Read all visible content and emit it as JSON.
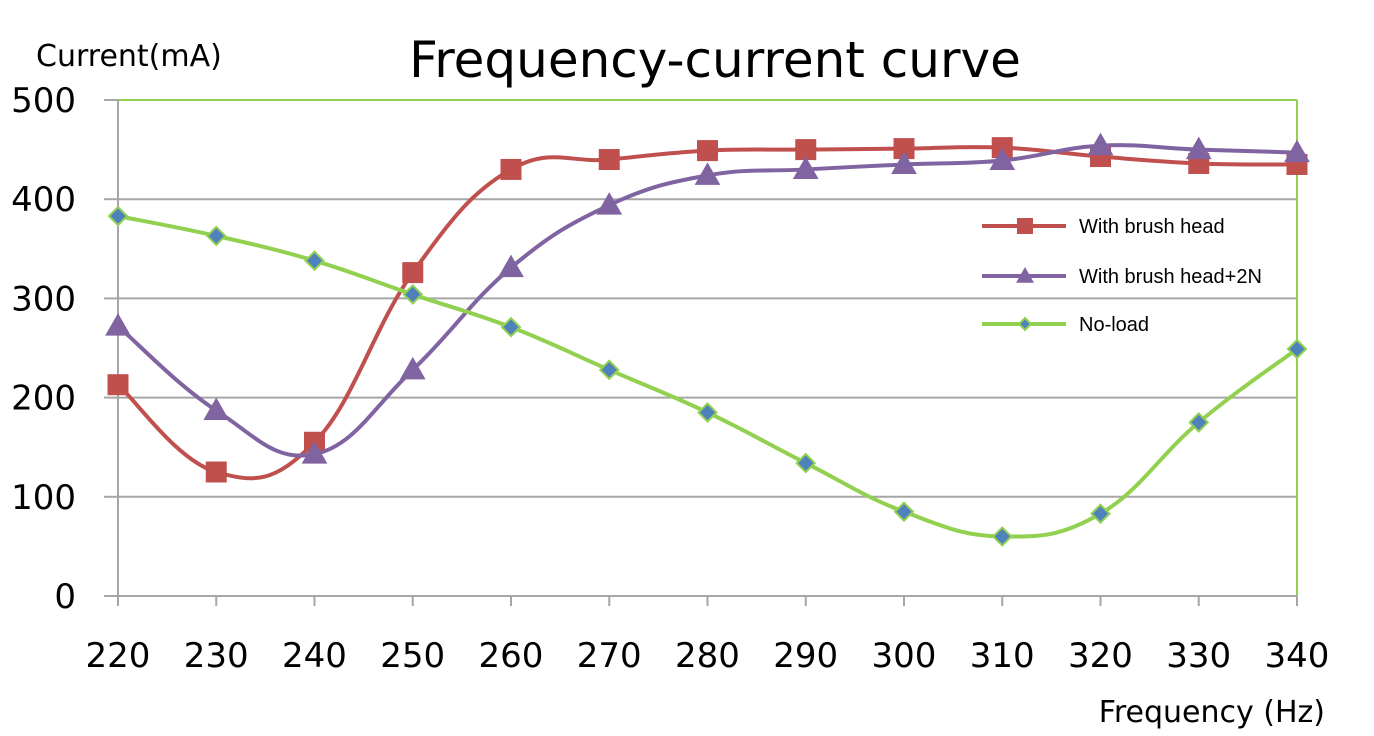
{
  "chart_data": {
    "type": "line",
    "title": "Frequency-current curve",
    "ylabel": "Current(mA)",
    "xlabel": "Frequency (Hz)",
    "x": [
      220,
      230,
      240,
      250,
      260,
      270,
      280,
      290,
      300,
      310,
      320,
      330,
      340
    ],
    "ylim": [
      0,
      500
    ],
    "yticks": [
      0,
      100,
      200,
      300,
      400,
      500
    ],
    "grid": true,
    "legend_position": "right",
    "series": [
      {
        "name": "With brush head",
        "color": "#C0504D",
        "marker": "square",
        "values": [
          213,
          125,
          155,
          326,
          430,
          440,
          449,
          450,
          451,
          452,
          443,
          436,
          435
        ]
      },
      {
        "name": "With brush head+2N",
        "color": "#8064A2",
        "marker": "triangle",
        "values": [
          272,
          187,
          143,
          228,
          331,
          394,
          424,
          430,
          435,
          439,
          454,
          450,
          447
        ]
      },
      {
        "name": "No-load",
        "color": "#92D050",
        "marker": "diamond",
        "marker_fill": "#4F81BD",
        "values": [
          383,
          363,
          338,
          304,
          271,
          228,
          185,
          134,
          85,
          60,
          83,
          175,
          249
        ]
      }
    ]
  }
}
